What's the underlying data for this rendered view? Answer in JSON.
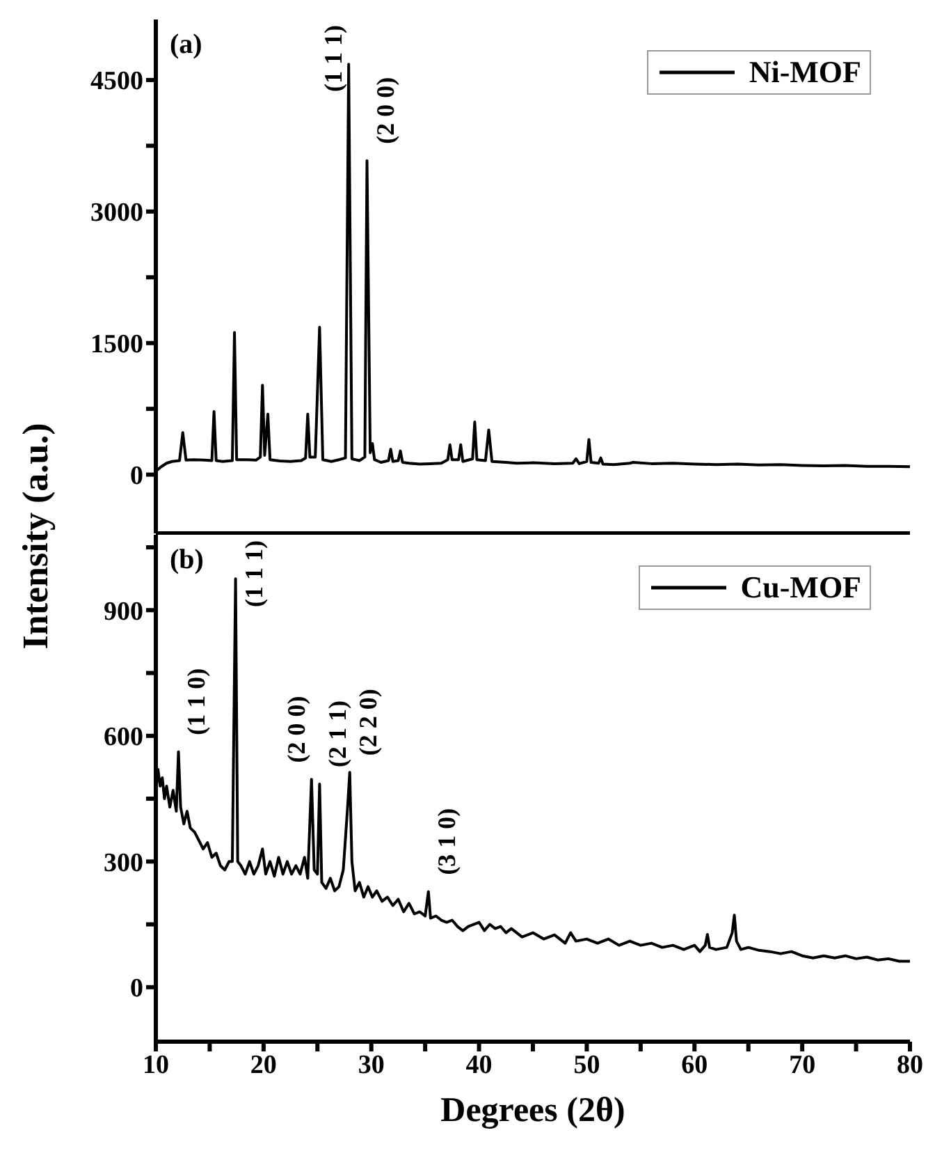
{
  "chart_data": [
    {
      "type": "line",
      "ylabel": "Intensity (a.u.)",
      "legend": "top right",
      "tick_labels": "y",
      "xlim": [
        10,
        80
      ],
      "ylim": [
        -670,
        5190
      ],
      "yticks": [
        0,
        {
          "value": 750,
          "label": null
        },
        1500,
        {
          "value": 2250,
          "label": null
        },
        3000,
        {
          "value": 3750,
          "label": null
        },
        4500
      ],
      "annotations": [
        "(a)",
        {
          "text": "(1 1 1)",
          "x": 27.9,
          "y": 4680
        },
        {
          "text": "(2 0 0)",
          "x": 29.6,
          "y": 3580
        }
      ],
      "series": [
        {
          "name": "Ni-MOF",
          "color": "#000000",
          "x": [
            10,
            10.5,
            11,
            11.5,
            12.2,
            12.5,
            12.8,
            13.5,
            14.5,
            15.2,
            15.4,
            15.6,
            16.2,
            17.1,
            17.3,
            17.5,
            18.5,
            19.3,
            19.7,
            19.9,
            20.1,
            20.4,
            20.6,
            21.5,
            22.5,
            23.5,
            23.9,
            24.1,
            24.3,
            24.8,
            25.2,
            25.5,
            26.3,
            27.0,
            27.6,
            27.9,
            28.2,
            28.9,
            29.4,
            29.6,
            29.9,
            30.1,
            30.3,
            30.9,
            31.6,
            31.8,
            32.0,
            32.5,
            32.7,
            32.9,
            33.5,
            34.5,
            35.5,
            36.5,
            37.1,
            37.3,
            37.5,
            38.1,
            38.3,
            38.5,
            39.4,
            39.6,
            39.8,
            40.6,
            40.9,
            41.2,
            42.5,
            43.5,
            45,
            47,
            48.7,
            49,
            49.3,
            50.0,
            50.2,
            50.4,
            51.1,
            51.3,
            51.5,
            52.5,
            54,
            54.3,
            56,
            58,
            60,
            62,
            64,
            66,
            68,
            70,
            72,
            74,
            76,
            78,
            80
          ],
          "values": [
            40,
            90,
            130,
            150,
            160,
            480,
            165,
            170,
            165,
            160,
            720,
            160,
            150,
            160,
            1620,
            170,
            170,
            165,
            200,
            1020,
            220,
            690,
            170,
            155,
            150,
            160,
            190,
            690,
            200,
            200,
            1680,
            170,
            150,
            170,
            190,
            4680,
            180,
            160,
            200,
            3580,
            250,
            355,
            170,
            140,
            160,
            290,
            150,
            160,
            270,
            140,
            130,
            120,
            125,
            130,
            170,
            340,
            170,
            170,
            340,
            150,
            180,
            600,
            170,
            160,
            510,
            150,
            140,
            130,
            135,
            125,
            130,
            180,
            125,
            150,
            400,
            140,
            130,
            190,
            120,
            115,
            130,
            140,
            125,
            130,
            120,
            115,
            120,
            110,
            115,
            105,
            100,
            105,
            95,
            95,
            90
          ]
        }
      ]
    },
    {
      "type": "line",
      "xlabel": "Degrees (2θ)",
      "legend": "top right",
      "xlim": [
        10,
        80
      ],
      "xticks": [
        10,
        {
          "value": 15,
          "label": null
        },
        20,
        {
          "value": 25,
          "label": null
        },
        30,
        {
          "value": 35,
          "label": null
        },
        40,
        {
          "value": 45,
          "label": null
        },
        50,
        {
          "value": 55,
          "label": null
        },
        60,
        {
          "value": 65,
          "label": null
        },
        70,
        {
          "value": 75,
          "label": null
        },
        80
      ],
      "ylim": [
        -130,
        1080
      ],
      "yticks": [
        0,
        {
          "value": 150,
          "label": null
        },
        300,
        {
          "value": 450,
          "label": null
        },
        600,
        {
          "value": 750,
          "label": null
        },
        900,
        {
          "value": 1050,
          "label": null
        }
      ],
      "annotations": [
        "(b)",
        {
          "text": "(1 1 0)",
          "x": 12.1,
          "y": 562
        },
        {
          "text": "(1 1 1)",
          "x": 17.4,
          "y": 975
        },
        {
          "text": "(2 0 0)",
          "x": 24.45,
          "y": 496
        },
        {
          "text": "(2 1 1)",
          "x": 25.2,
          "y": 485
        },
        {
          "text": "(2 2 0)",
          "x": 28.0,
          "y": 513
        },
        {
          "text": "(3 1 0)",
          "x": 35.3,
          "y": 228
        }
      ],
      "series": [
        {
          "name": "Cu-MOF",
          "color": "#000000",
          "x": [
            10,
            10.2,
            10.4,
            10.6,
            10.8,
            11.0,
            11.3,
            11.6,
            11.9,
            12.1,
            12.3,
            12.6,
            12.9,
            13.2,
            13.6,
            14.0,
            14.4,
            14.8,
            15.2,
            15.6,
            16.0,
            16.4,
            16.8,
            17.1,
            17.4,
            17.6,
            17.9,
            18.3,
            18.7,
            19.1,
            19.5,
            19.9,
            20.2,
            20.6,
            21.0,
            21.4,
            21.8,
            22.2,
            22.6,
            23.0,
            23.4,
            23.8,
            24.1,
            24.45,
            24.7,
            25.0,
            25.2,
            25.4,
            25.8,
            26.2,
            26.6,
            27.0,
            27.4,
            27.8,
            28.0,
            28.2,
            28.5,
            28.9,
            29.3,
            29.7,
            30.1,
            30.5,
            31.0,
            31.5,
            32.0,
            32.5,
            33.0,
            33.5,
            34.0,
            34.5,
            35.0,
            35.3,
            35.5,
            36,
            36.5,
            37,
            37.5,
            38,
            38.5,
            39,
            39.5,
            40,
            40.5,
            41,
            41.5,
            42,
            42.5,
            43,
            44,
            45,
            46,
            47,
            48,
            48.5,
            49,
            50,
            51,
            52,
            53,
            54,
            55,
            56,
            57,
            58,
            59,
            60,
            60.5,
            61.0,
            61.2,
            61.4,
            62,
            63,
            63.5,
            63.7,
            63.9,
            64.3,
            65,
            66,
            67,
            68,
            69,
            70,
            71,
            72,
            73,
            74,
            75,
            76,
            77,
            78,
            79,
            80
          ],
          "values": [
            470,
            520,
            480,
            500,
            450,
            480,
            430,
            470,
            420,
            562,
            430,
            390,
            420,
            380,
            370,
            350,
            330,
            345,
            310,
            320,
            290,
            280,
            300,
            300,
            975,
            300,
            290,
            270,
            300,
            270,
            290,
            330,
            270,
            300,
            265,
            310,
            270,
            300,
            270,
            290,
            270,
            310,
            260,
            496,
            280,
            270,
            485,
            250,
            236,
            260,
            230,
            240,
            280,
            430,
            513,
            300,
            230,
            250,
            215,
            240,
            215,
            230,
            205,
            215,
            195,
            210,
            180,
            200,
            175,
            180,
            170,
            228,
            165,
            170,
            160,
            155,
            160,
            145,
            135,
            145,
            150,
            155,
            135,
            150,
            140,
            145,
            130,
            140,
            120,
            130,
            115,
            125,
            105,
            130,
            110,
            115,
            105,
            115,
            100,
            110,
            100,
            105,
            95,
            100,
            90,
            100,
            85,
            100,
            126,
            95,
            90,
            95,
            130,
            172,
            110,
            90,
            95,
            88,
            85,
            80,
            85,
            75,
            70,
            75,
            70,
            75,
            68,
            72,
            65,
            68,
            62,
            62
          ]
        }
      ]
    }
  ]
}
